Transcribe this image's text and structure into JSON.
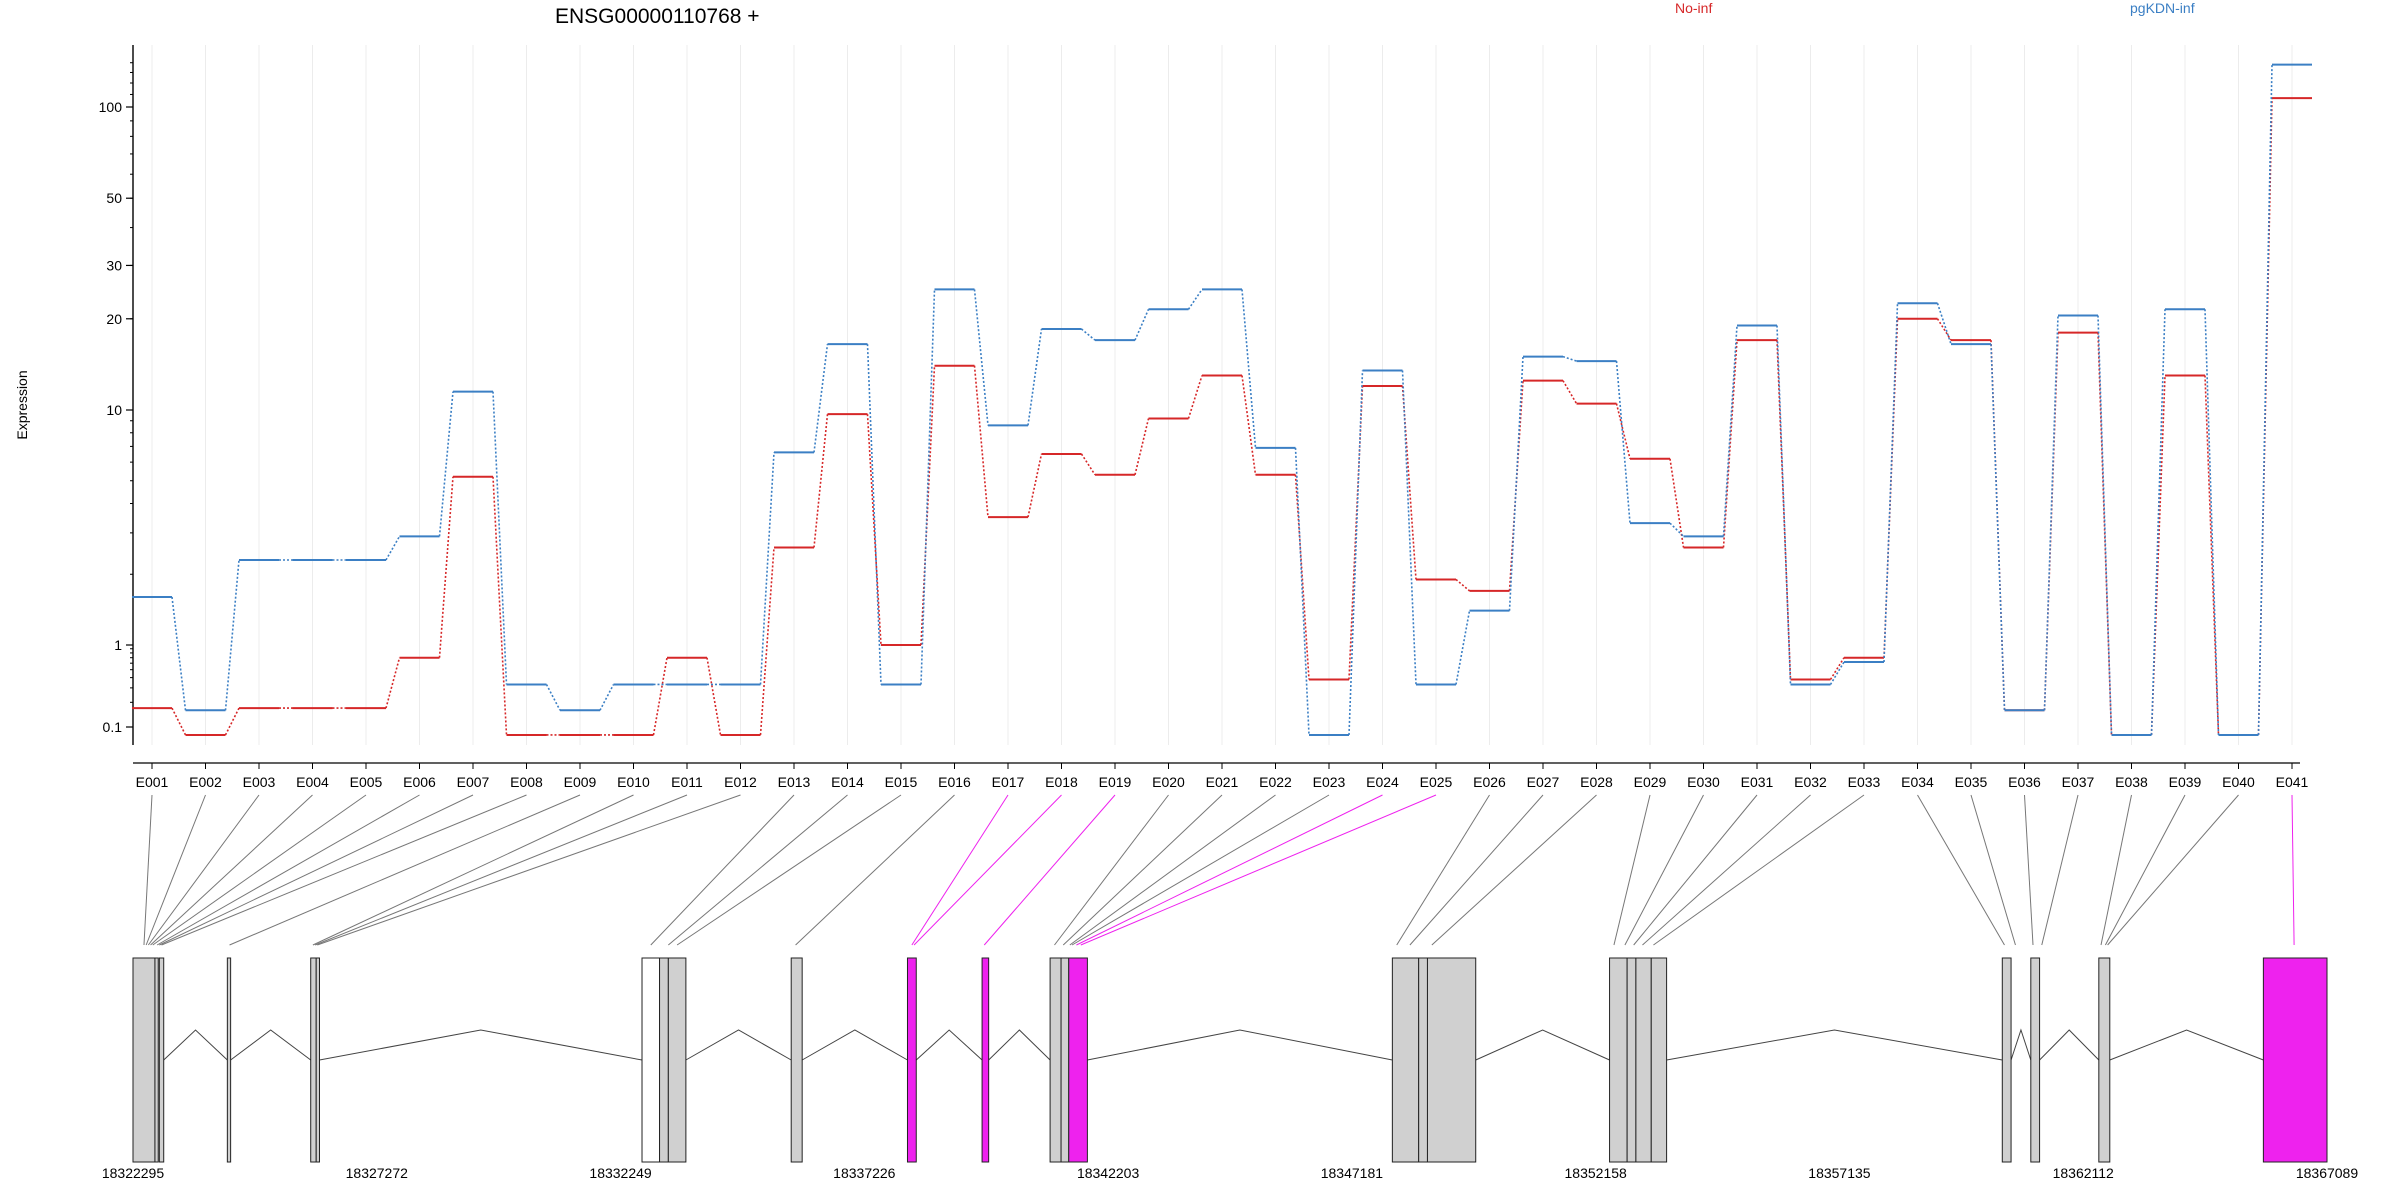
{
  "chart_data": {
    "type": "line",
    "title": "ENSG00000110768 +",
    "ylabel": "Expression",
    "y_scale": "log",
    "yticks": [
      0.1,
      1,
      10,
      20,
      30,
      50,
      100
    ],
    "ytick_labels": [
      "0.1",
      "1",
      "10",
      "20",
      "30",
      "50",
      "100"
    ],
    "categories": [
      "E001",
      "E002",
      "E003",
      "E004",
      "E005",
      "E006",
      "E007",
      "E008",
      "E009",
      "E010",
      "E011",
      "E012",
      "E013",
      "E014",
      "E015",
      "E016",
      "E017",
      "E018",
      "E019",
      "E020",
      "E021",
      "E022",
      "E023",
      "E024",
      "E025",
      "E026",
      "E027",
      "E028",
      "E029",
      "E030",
      "E031",
      "E032",
      "E033",
      "E034",
      "E035",
      "E036",
      "E037",
      "E038",
      "E039",
      "E040",
      "E041"
    ],
    "series": [
      {
        "name": "No-inf",
        "color": "#d62728",
        "values": [
          0.17,
          0.08,
          0.17,
          0.17,
          0.17,
          0.7,
          5.2,
          0.08,
          0.08,
          0.08,
          0.7,
          0.08,
          2.6,
          9.6,
          1.0,
          14,
          3.5,
          6.5,
          5.3,
          9.2,
          13,
          5.3,
          0.38,
          12,
          1.9,
          1.7,
          12.5,
          10.5,
          6.2,
          2.6,
          17,
          0.38,
          0.7,
          20,
          17,
          0.16,
          18,
          0.08,
          13,
          0.08,
          107
        ]
      },
      {
        "name": "pgKDN-inf",
        "color": "#3b7fc4",
        "values": [
          1.6,
          0.16,
          2.3,
          2.3,
          2.3,
          2.9,
          11.5,
          0.33,
          0.16,
          0.33,
          0.33,
          0.33,
          6.6,
          16.5,
          0.33,
          25,
          8.6,
          18.5,
          17,
          21.5,
          25,
          6.9,
          0.08,
          13.5,
          0.33,
          1.4,
          15,
          14.5,
          3.3,
          2.9,
          19,
          0.33,
          0.62,
          22.5,
          16.5,
          0.16,
          20.5,
          0.08,
          21.5,
          0.08,
          138
        ]
      }
    ],
    "legend": [
      "No-inf",
      "pgKDN-inf"
    ],
    "legend_placement": "top-right",
    "grid": "vertical",
    "gene_model": {
      "coord_labels": [
        "18322295",
        "18327272",
        "18332249",
        "18337226",
        "18342203",
        "18347181",
        "18352158",
        "18357135",
        "18362112",
        "18367089"
      ],
      "coord_start": 18322295,
      "coord_end": 18367089,
      "exon_color": "#d0d0d0",
      "highlight_color": "#ee22ee",
      "intron_color": "#444444"
    }
  }
}
